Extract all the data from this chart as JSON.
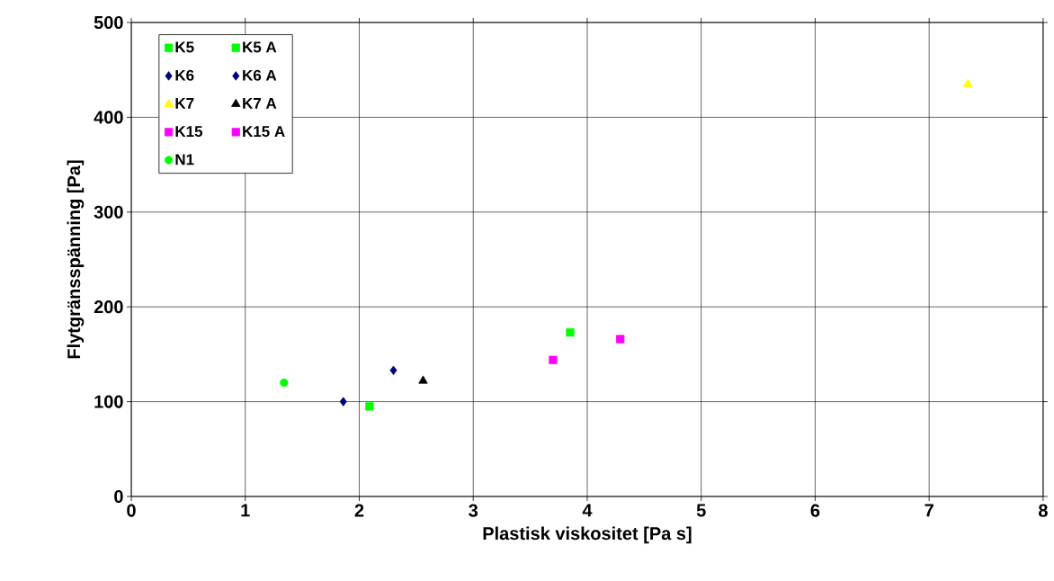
{
  "chart_data": {
    "type": "scatter",
    "xlabel": "Plastisk viskositet [Pa s]",
    "ylabel": "Flytgränsspänning [Pa]",
    "xlim": [
      0,
      8
    ],
    "ylim": [
      0,
      500
    ],
    "xticks": [
      0,
      1,
      2,
      3,
      4,
      5,
      6,
      7,
      8
    ],
    "yticks": [
      0,
      100,
      200,
      300,
      400,
      500
    ],
    "grid": true,
    "legend": "top left",
    "series": [
      {
        "name": "K5",
        "color": "#00ff00",
        "marker": "square",
        "x": [
          3.85
        ],
        "values": [
          173
        ]
      },
      {
        "name": "K5 A",
        "color": "#00ff00",
        "marker": "square",
        "x": [
          2.09
        ],
        "values": [
          95
        ]
      },
      {
        "name": "K6",
        "color": "#000080",
        "marker": "diamond",
        "x": [
          2.3
        ],
        "values": [
          133
        ]
      },
      {
        "name": "K6 A",
        "color": "#000080",
        "marker": "diamond",
        "x": [
          1.86
        ],
        "values": [
          100
        ]
      },
      {
        "name": "K7",
        "color": "#ffff00",
        "marker": "triangle",
        "x": [
          7.34
        ],
        "values": [
          435
        ]
      },
      {
        "name": "K7 A",
        "color": "#000000",
        "marker": "triangle",
        "x": [
          2.56
        ],
        "values": [
          122
        ]
      },
      {
        "name": "K15",
        "color": "#ff00ff",
        "marker": "square",
        "x": [
          4.29
        ],
        "values": [
          166
        ]
      },
      {
        "name": "K15 A",
        "color": "#ff00ff",
        "marker": "square",
        "x": [
          3.7
        ],
        "values": [
          144
        ]
      },
      {
        "name": "N1",
        "color": "#00ff00",
        "marker": "circle",
        "x": [
          1.34
        ],
        "values": [
          120
        ]
      }
    ]
  }
}
